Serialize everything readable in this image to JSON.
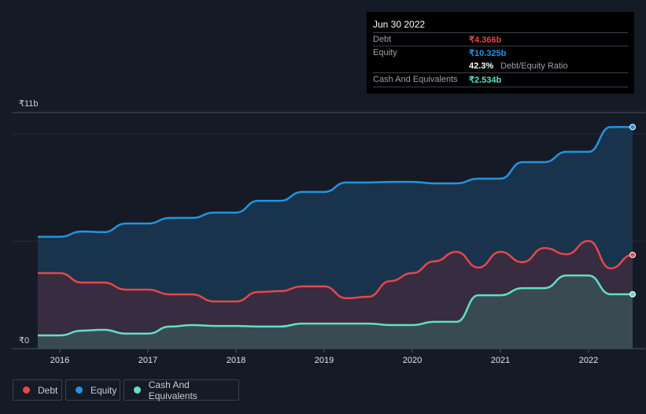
{
  "colors": {
    "debt": "#e5474b",
    "equity": "#2394df",
    "cash": "#5ee0c8"
  },
  "tooltip": {
    "date": "Jun 30 2022",
    "debt_label": "Debt",
    "debt_value": "₹4.366b",
    "equity_label": "Equity",
    "equity_value": "₹10.325b",
    "ratio_value": "42.3%",
    "ratio_label": "Debt/Equity Ratio",
    "cash_label": "Cash And Equivalents",
    "cash_value": "₹2.534b"
  },
  "legend": [
    {
      "label": "Debt"
    },
    {
      "label": "Equity"
    },
    {
      "label": "Cash And Equivalents"
    }
  ],
  "chart_data": {
    "type": "area",
    "title": "",
    "xlabel": "",
    "ylabel": "",
    "units": "₹ billions",
    "ylim": [
      0,
      11
    ],
    "y_tick_labels": [
      "₹0",
      "₹11b"
    ],
    "gridlines": [
      5,
      10,
      11
    ],
    "x_ticks": [
      2016,
      2017,
      2018,
      2019,
      2020,
      2021,
      2022
    ],
    "xlim": [
      2015.45,
      2022.64
    ],
    "x": [
      2015.75,
      2016,
      2016.25,
      2016.5,
      2016.75,
      2017,
      2017.25,
      2017.5,
      2017.75,
      2018,
      2018.25,
      2018.5,
      2018.75,
      2019,
      2019.25,
      2019.5,
      2019.75,
      2020,
      2020.25,
      2020.5,
      2020.75,
      2021,
      2021.25,
      2021.5,
      2021.75,
      2022,
      2022.25,
      2022.5
    ],
    "series": [
      {
        "name": "Equity",
        "values": [
          5.21,
          5.21,
          5.46,
          5.43,
          5.83,
          5.83,
          6.09,
          6.09,
          6.34,
          6.34,
          6.89,
          6.89,
          7.3,
          7.3,
          7.74,
          7.74,
          7.77,
          7.77,
          7.7,
          7.7,
          7.92,
          7.92,
          8.69,
          8.69,
          9.17,
          9.17,
          10.325,
          10.325
        ]
      },
      {
        "name": "Debt",
        "values": [
          3.52,
          3.52,
          3.08,
          3.08,
          2.75,
          2.75,
          2.53,
          2.53,
          2.2,
          2.2,
          2.64,
          2.68,
          2.9,
          2.9,
          2.35,
          2.42,
          3.15,
          3.52,
          4.07,
          4.51,
          3.78,
          4.51,
          4.03,
          4.69,
          4.4,
          5.02,
          3.74,
          4.366
        ]
      },
      {
        "name": "Cash And Equivalents",
        "values": [
          0.62,
          0.62,
          0.84,
          0.88,
          0.7,
          0.7,
          1.03,
          1.1,
          1.06,
          1.06,
          1.03,
          1.03,
          1.17,
          1.17,
          1.17,
          1.17,
          1.1,
          1.1,
          1.25,
          1.25,
          2.49,
          2.49,
          2.82,
          2.82,
          3.41,
          3.41,
          2.534,
          2.534
        ]
      }
    ]
  }
}
